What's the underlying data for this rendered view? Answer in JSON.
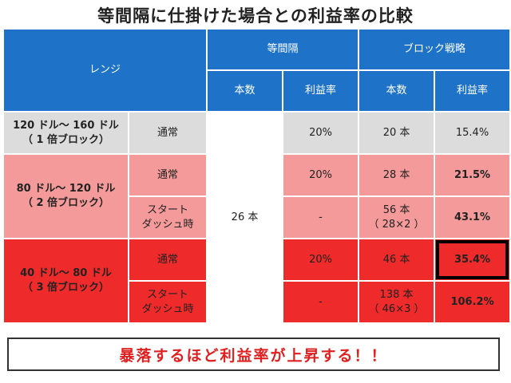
{
  "title": "等間隔に仕掛けた場合との利益率の比較",
  "header": {
    "range": "レンジ",
    "equal_interval": "等間隔",
    "block_strategy": "ブロック戦略",
    "count": "本数",
    "profit_rate": "利益率",
    "count2": "本数",
    "profit_rate2": "利益率"
  },
  "rows": [
    {
      "range_line1": "120 ドル～ 160 ドル",
      "range_line2": "（ 1 倍ブロック）",
      "sub": [
        {
          "type_line1": "通常",
          "type_line2": "",
          "equal_rate": "20%",
          "block_count_line1": "20 本",
          "block_count_line2": "",
          "block_rate": "15.4%"
        }
      ]
    },
    {
      "range_line1": "80 ドル～ 120 ドル",
      "range_line2": "（ 2 倍ブロック）",
      "sub": [
        {
          "type_line1": "通常",
          "type_line2": "",
          "equal_rate": "20%",
          "block_count_line1": "28 本",
          "block_count_line2": "",
          "block_rate": "21.5%"
        },
        {
          "type_line1": "スタート",
          "type_line2": "ダッシュ時",
          "equal_rate": "-",
          "block_count_line1": "56 本",
          "block_count_line2": "（ 28×2 ）",
          "block_rate": "43.1%"
        }
      ]
    },
    {
      "range_line1": "40 ドル～ 80 ドル",
      "range_line2": "（ 3 倍ブロック）",
      "sub": [
        {
          "type_line1": "通常",
          "type_line2": "",
          "equal_rate": "20%",
          "block_count_line1": "46 本",
          "block_count_line2": "",
          "block_rate": "35.4%"
        },
        {
          "type_line1": "スタート",
          "type_line2": "ダッシュ時",
          "equal_rate": "-",
          "block_count_line1": "138 本",
          "block_count_line2": "（ 46×3 ）",
          "block_rate": "106.2%"
        }
      ]
    }
  ],
  "equal_count": "26 本",
  "footer": "暴落するほど利益率が上昇する！！",
  "colors": {
    "header_blue": "#1e73c8",
    "row_gray": "#dcdcdc",
    "row_pink": "#f49a9a",
    "row_red": "#ee2a2a",
    "footer_text": "#e02020"
  }
}
